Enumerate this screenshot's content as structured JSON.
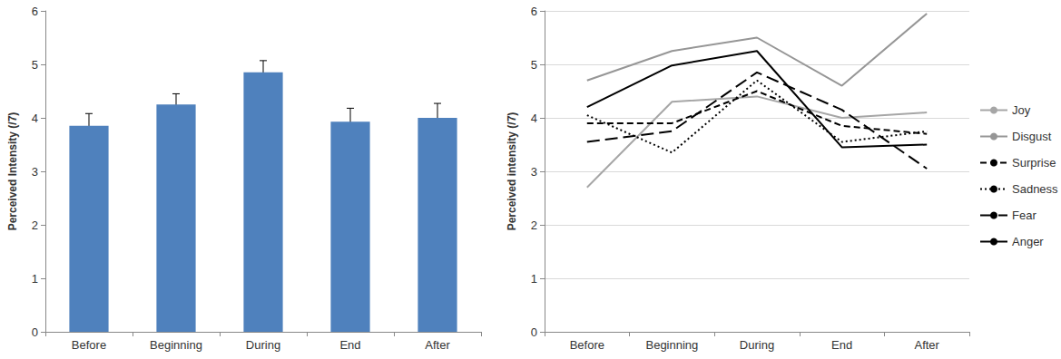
{
  "chart_data": [
    {
      "type": "bar",
      "y_label": "Perceived Intensity (/7)",
      "categories": [
        "Before",
        "Beginning",
        "During",
        "End",
        "After"
      ],
      "values": [
        3.85,
        4.25,
        4.85,
        3.93,
        4.0
      ],
      "errors": [
        0.23,
        0.2,
        0.22,
        0.25,
        0.27
      ],
      "color": "#4f81bd",
      "ylim": [
        0,
        6
      ],
      "yticks": [
        0,
        1,
        2,
        3,
        4,
        5,
        6
      ],
      "grid": false
    },
    {
      "type": "line",
      "y_label": "Perceived intensity (/7)",
      "categories": [
        "Before",
        "Beginning",
        "During",
        "End",
        "After"
      ],
      "series": [
        {
          "name": "Joy",
          "color": "#a6a6a6",
          "line_style": "solid",
          "values": [
            2.7,
            4.3,
            4.4,
            4.0,
            4.1
          ]
        },
        {
          "name": "Disgust",
          "color": "#969696",
          "line_style": "solid",
          "values": [
            4.7,
            5.25,
            5.5,
            4.6,
            5.95
          ]
        },
        {
          "name": "Surprise",
          "color": "#000000",
          "line_style": "dashed",
          "values": [
            3.9,
            3.9,
            4.5,
            3.85,
            3.7
          ]
        },
        {
          "name": "Sadness",
          "color": "#000000",
          "line_style": "dotted",
          "values": [
            4.05,
            3.35,
            4.7,
            3.55,
            3.75
          ]
        },
        {
          "name": "Fear",
          "color": "#000000",
          "line_style": "longdash",
          "values": [
            3.55,
            3.75,
            4.85,
            4.15,
            3.05
          ]
        },
        {
          "name": "Anger",
          "color": "#000000",
          "line_style": "solid",
          "values": [
            4.2,
            4.98,
            5.25,
            3.45,
            3.5
          ]
        }
      ],
      "ylim": [
        0,
        6
      ],
      "yticks": [
        0,
        1,
        2,
        3,
        4,
        5,
        6
      ],
      "grid": true,
      "legend": "right"
    }
  ]
}
